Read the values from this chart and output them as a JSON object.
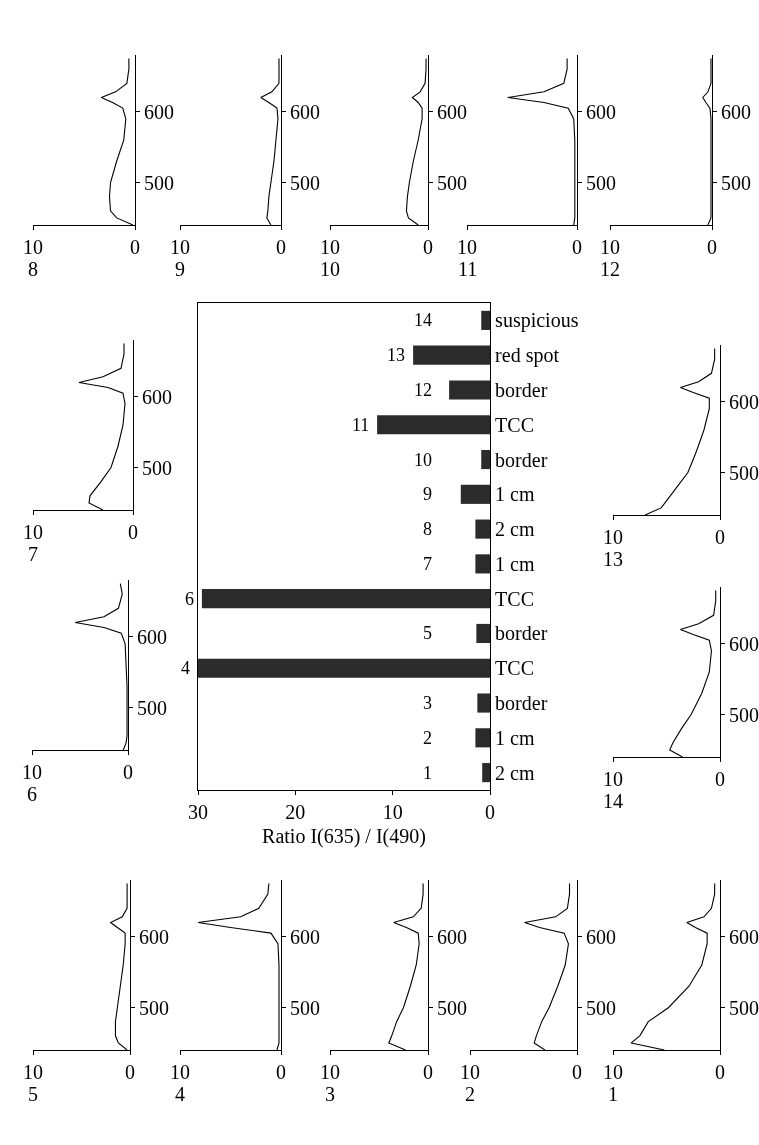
{
  "chart_data": [
    {
      "type": "line",
      "title": "8",
      "orientation": "horizontal",
      "color": "#000000",
      "x": [
        440,
        450,
        460,
        480,
        500,
        530,
        560,
        590,
        605,
        613,
        620,
        628,
        640,
        660,
        675
      ],
      "values": [
        0.2,
        1.8,
        2.4,
        2.5,
        2.4,
        1.8,
        1.1,
        0.9,
        1.2,
        2.2,
        3.3,
        1.9,
        0.8,
        0.6,
        0.6
      ],
      "xlim": [
        10,
        0
      ],
      "xticks": [
        10,
        0
      ],
      "ylim": [
        440,
        680
      ],
      "yticks": [
        500,
        600
      ]
    },
    {
      "type": "line",
      "title": "9",
      "orientation": "horizontal",
      "color": "#000000",
      "x": [
        440,
        450,
        460,
        480,
        500,
        530,
        560,
        590,
        605,
        613,
        620,
        628,
        640,
        660,
        675
      ],
      "values": [
        1.0,
        1.4,
        1.3,
        1.2,
        1.0,
        0.7,
        0.5,
        0.3,
        0.4,
        1.2,
        2.0,
        0.9,
        0.2,
        0.2,
        0.2
      ],
      "xlim": [
        10,
        0
      ],
      "xticks": [
        10,
        0
      ],
      "ylim": [
        440,
        680
      ],
      "yticks": [
        500,
        600
      ]
    },
    {
      "type": "line",
      "title": "10",
      "orientation": "horizontal",
      "color": "#000000",
      "x": [
        440,
        450,
        460,
        480,
        500,
        530,
        560,
        590,
        605,
        613,
        620,
        628,
        640,
        660,
        675
      ],
      "values": [
        1.0,
        2.0,
        2.2,
        2.1,
        1.9,
        1.5,
        1.0,
        0.6,
        0.6,
        1.0,
        1.6,
        0.8,
        0.3,
        0.2,
        0.2
      ],
      "xlim": [
        10,
        0
      ],
      "xticks": [
        10,
        0
      ],
      "ylim": [
        440,
        680
      ],
      "yticks": [
        500,
        600
      ]
    },
    {
      "type": "line",
      "title": "11",
      "orientation": "horizontal",
      "color": "#000000",
      "x": [
        440,
        450,
        460,
        480,
        500,
        530,
        560,
        590,
        605,
        613,
        620,
        628,
        640,
        660,
        675
      ],
      "values": [
        0.3,
        0.2,
        0.2,
        0.2,
        0.2,
        0.2,
        0.2,
        0.3,
        0.8,
        3.0,
        6.3,
        3.0,
        1.2,
        0.9,
        0.9
      ],
      "xlim": [
        10,
        0
      ],
      "xticks": [
        10,
        0
      ],
      "ylim": [
        440,
        680
      ],
      "yticks": [
        500,
        600
      ]
    },
    {
      "type": "line",
      "title": "12",
      "orientation": "horizontal",
      "color": "#000000",
      "x": [
        440,
        450,
        460,
        480,
        500,
        530,
        560,
        590,
        605,
        613,
        620,
        628,
        640,
        660,
        675
      ],
      "values": [
        0.4,
        0.1,
        0.1,
        0.1,
        0.1,
        0.1,
        0.1,
        0.1,
        0.2,
        0.6,
        0.9,
        0.4,
        0.1,
        0.1,
        0.1
      ],
      "xlim": [
        10,
        0
      ],
      "xticks": [
        10,
        0
      ],
      "ylim": [
        440,
        680
      ],
      "yticks": [
        500,
        600
      ]
    },
    {
      "type": "line",
      "title": "7",
      "orientation": "horizontal",
      "color": "#000000",
      "x": [
        440,
        450,
        460,
        480,
        500,
        530,
        560,
        590,
        605,
        613,
        620,
        628,
        640,
        660,
        675
      ],
      "values": [
        3.0,
        4.4,
        4.3,
        3.2,
        2.2,
        1.5,
        1.0,
        0.8,
        1.0,
        2.5,
        5.4,
        3.0,
        1.2,
        0.9,
        0.9
      ],
      "xlim": [
        10,
        0
      ],
      "xticks": [
        10,
        0
      ],
      "ylim": [
        440,
        680
      ],
      "yticks": [
        500,
        600
      ]
    },
    {
      "type": "bar",
      "orientation": "horizontal",
      "color": "#2b2b2b",
      "categories": [
        "suspicious",
        "red spot",
        "border",
        "TCC",
        "border",
        "1 cm",
        "2 cm",
        "1 cm",
        "TCC",
        "border",
        "TCC",
        "border",
        "1 cm",
        "2 cm"
      ],
      "values": [
        0.9,
        7.9,
        4.2,
        11.6,
        0.9,
        3.0,
        1.5,
        1.5,
        29.6,
        1.4,
        30,
        1.3,
        1.5,
        0.8
      ],
      "annotations": [
        "14",
        "13",
        "12",
        "11",
        "10",
        "9",
        "8",
        "7",
        "6",
        "5",
        "4",
        "3",
        "2",
        "1"
      ],
      "xlabel": "Ratio I(635) / I(490)",
      "xlim": [
        30,
        0
      ],
      "xticks": [
        30,
        20,
        10,
        0
      ]
    },
    {
      "type": "line",
      "title": "13",
      "orientation": "horizontal",
      "color": "#000000",
      "x": [
        440,
        450,
        460,
        480,
        500,
        530,
        560,
        590,
        605,
        613,
        620,
        628,
        640,
        660,
        675
      ],
      "values": [
        7.0,
        5.5,
        5.0,
        4.0,
        3.0,
        2.2,
        1.5,
        1.0,
        1.0,
        2.5,
        3.7,
        2.0,
        0.8,
        0.5,
        0.5
      ],
      "xlim": [
        10,
        0
      ],
      "xticks": [
        10,
        0
      ],
      "ylim": [
        440,
        680
      ],
      "yticks": [
        500,
        600
      ]
    },
    {
      "type": "line",
      "title": "6",
      "orientation": "horizontal",
      "color": "#000000",
      "x": [
        440,
        450,
        460,
        480,
        500,
        530,
        560,
        590,
        605,
        613,
        620,
        628,
        640,
        660,
        675
      ],
      "values": [
        0.5,
        0.2,
        0.1,
        0.1,
        0.1,
        0.1,
        0.2,
        0.3,
        0.7,
        2.5,
        5.5,
        2.5,
        1.0,
        0.6,
        0.8
      ],
      "xlim": [
        10,
        0
      ],
      "xticks": [
        10,
        0
      ],
      "ylim": [
        440,
        680
      ],
      "yticks": [
        500,
        600
      ]
    },
    {
      "type": "line",
      "title": "14",
      "orientation": "horizontal",
      "color": "#000000",
      "x": [
        440,
        450,
        460,
        480,
        500,
        530,
        560,
        590,
        605,
        613,
        620,
        628,
        640,
        660,
        675
      ],
      "values": [
        3.5,
        4.7,
        4.4,
        3.6,
        2.7,
        1.7,
        1.0,
        0.8,
        1.0,
        2.5,
        3.7,
        2.0,
        0.6,
        0.4,
        0.4
      ],
      "xlim": [
        10,
        0
      ],
      "xticks": [
        10,
        0
      ],
      "ylim": [
        440,
        680
      ],
      "yticks": [
        500,
        600
      ]
    },
    {
      "type": "line",
      "title": "5",
      "orientation": "horizontal",
      "color": "#000000",
      "x": [
        440,
        450,
        460,
        480,
        500,
        530,
        560,
        590,
        605,
        613,
        620,
        628,
        640,
        660,
        675
      ],
      "values": [
        0.3,
        1.2,
        1.5,
        1.5,
        1.3,
        1.0,
        0.7,
        0.5,
        0.5,
        1.3,
        2.0,
        0.8,
        0.3,
        0.3,
        0.3
      ],
      "xlim": [
        10,
        0
      ],
      "xticks": [
        10,
        0
      ],
      "ylim": [
        440,
        680
      ],
      "yticks": [
        500,
        600
      ]
    },
    {
      "type": "line",
      "title": "4",
      "orientation": "horizontal",
      "color": "#000000",
      "x": [
        440,
        450,
        460,
        480,
        500,
        530,
        560,
        590,
        605,
        613,
        620,
        628,
        640,
        660,
        675
      ],
      "values": [
        0.4,
        0.2,
        0.2,
        0.2,
        0.2,
        0.2,
        0.2,
        0.3,
        1.0,
        5.0,
        8.2,
        4.0,
        2.2,
        1.3,
        1.2
      ],
      "xlim": [
        10,
        0
      ],
      "xticks": [
        10,
        0
      ],
      "ylim": [
        440,
        680
      ],
      "yticks": [
        500,
        600
      ]
    },
    {
      "type": "line",
      "title": "3",
      "orientation": "horizontal",
      "color": "#000000",
      "x": [
        440,
        450,
        460,
        480,
        500,
        530,
        560,
        590,
        605,
        613,
        620,
        628,
        640,
        660,
        675
      ],
      "values": [
        2.3,
        4.0,
        3.7,
        3.2,
        2.5,
        1.8,
        1.2,
        0.9,
        1.0,
        2.2,
        3.5,
        1.5,
        0.7,
        0.5,
        0.5
      ],
      "xlim": [
        10,
        0
      ],
      "xticks": [
        10,
        0
      ],
      "ylim": [
        440,
        680
      ],
      "yticks": [
        500,
        600
      ]
    },
    {
      "type": "line",
      "title": "2",
      "orientation": "horizontal",
      "color": "#000000",
      "x": [
        440,
        450,
        460,
        480,
        500,
        530,
        560,
        590,
        605,
        613,
        620,
        628,
        640,
        660,
        675
      ],
      "values": [
        3.0,
        4.0,
        3.8,
        3.3,
        2.6,
        1.8,
        1.1,
        0.8,
        1.2,
        3.5,
        4.9,
        2.0,
        0.9,
        0.7,
        0.7
      ],
      "xlim": [
        10,
        0
      ],
      "xticks": [
        10,
        0
      ],
      "ylim": [
        440,
        680
      ],
      "yticks": [
        500,
        600
      ]
    },
    {
      "type": "line",
      "title": "1",
      "orientation": "horizontal",
      "color": "#000000",
      "x": [
        440,
        450,
        460,
        480,
        500,
        530,
        560,
        590,
        605,
        613,
        620,
        628,
        640,
        660,
        675
      ],
      "values": [
        5.2,
        8.3,
        7.5,
        6.7,
        4.8,
        2.9,
        1.7,
        1.2,
        1.2,
        2.3,
        3.1,
        1.5,
        0.8,
        0.5,
        0.5
      ],
      "xlim": [
        10,
        0
      ],
      "xticks": [
        10,
        0
      ],
      "ylim": [
        440,
        680
      ],
      "yticks": [
        500,
        600
      ]
    }
  ]
}
